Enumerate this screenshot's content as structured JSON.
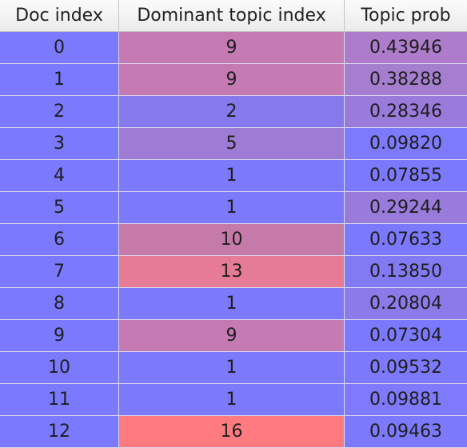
{
  "headers": [
    "Doc index",
    "Dominant topic index",
    "Topic prob"
  ],
  "rows": [
    {
      "doc": "0",
      "topic": "9",
      "prob": "0.43946",
      "topic_color": "#c57ab4",
      "prob_color": "#ad7ccb"
    },
    {
      "doc": "1",
      "topic": "9",
      "prob": "0.38288",
      "topic_color": "#c57ab4",
      "prob_color": "#a57ed0"
    },
    {
      "doc": "2",
      "topic": "2",
      "prob": "0.28346",
      "topic_color": "#8579ec",
      "prob_color": "#9a7bdc"
    },
    {
      "doc": "3",
      "topic": "5",
      "prob": "0.09820",
      "topic_color": "#9e7bd4",
      "prob_color": "#7d7afc"
    },
    {
      "doc": "4",
      "topic": "1",
      "prob": "0.07855",
      "topic_color": "#7c79fa",
      "prob_color": "#7b79fe"
    },
    {
      "doc": "5",
      "topic": "1",
      "prob": "0.29244",
      "topic_color": "#7c79fa",
      "prob_color": "#997bdc"
    },
    {
      "doc": "6",
      "topic": "10",
      "prob": "0.07633",
      "topic_color": "#c67aa9",
      "prob_color": "#7b79fe"
    },
    {
      "doc": "7",
      "topic": "13",
      "prob": "0.13850",
      "topic_color": "#e57b94",
      "prob_color": "#827af2"
    },
    {
      "doc": "8",
      "topic": "1",
      "prob": "0.20804",
      "topic_color": "#7c79fa",
      "prob_color": "#8c7ae8"
    },
    {
      "doc": "9",
      "topic": "9",
      "prob": "0.07304",
      "topic_color": "#c57ab4",
      "prob_color": "#7b79fe"
    },
    {
      "doc": "10",
      "topic": "1",
      "prob": "0.09532",
      "topic_color": "#7c79fa",
      "prob_color": "#7d79fc"
    },
    {
      "doc": "11",
      "topic": "1",
      "prob": "0.09881",
      "topic_color": "#7c79fa",
      "prob_color": "#7e7afb"
    },
    {
      "doc": "12",
      "topic": "16",
      "prob": "0.09463",
      "topic_color": "#ff7b80",
      "prob_color": "#7d79fc"
    }
  ],
  "doc_color": "#7b79fe"
}
